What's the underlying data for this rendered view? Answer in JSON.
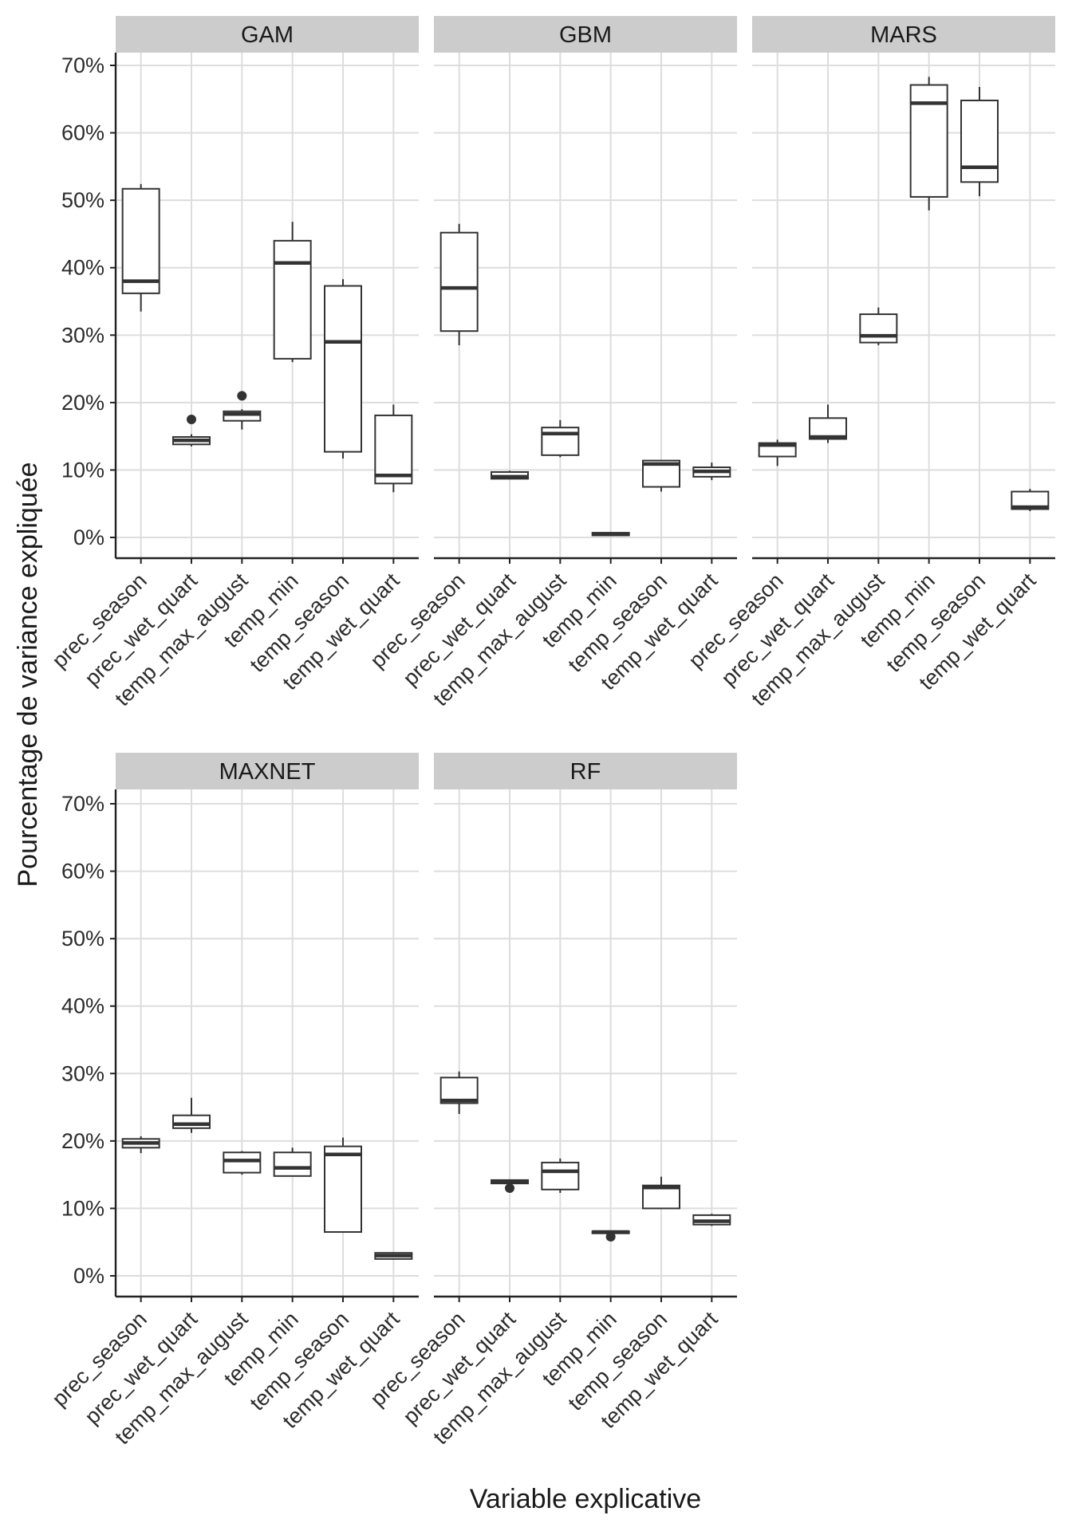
{
  "chart_data": {
    "type": "boxplot",
    "xlabel": "Variable explicative",
    "ylabel": "Pourcentage de variance expliquée",
    "ylim": [
      -0.03,
      0.72
    ],
    "yticks": [
      0,
      0.1,
      0.2,
      0.3,
      0.4,
      0.5,
      0.6,
      0.7
    ],
    "ytick_labels": [
      "0%",
      "10%",
      "20%",
      "30%",
      "40%",
      "50%",
      "60%",
      "70%"
    ],
    "categories": [
      "prec_season",
      "prec_wet_quart",
      "temp_max_august",
      "temp_min",
      "temp_season",
      "temp_wet_quart"
    ],
    "panels": [
      {
        "name": "GAM",
        "boxes": [
          {
            "whisker_low": 0.335,
            "q1": 0.362,
            "median": 0.38,
            "q3": 0.517,
            "whisker_high": 0.524,
            "outliers": []
          },
          {
            "whisker_low": 0.135,
            "q1": 0.138,
            "median": 0.144,
            "q3": 0.149,
            "whisker_high": 0.153,
            "outliers": [
              0.175
            ]
          },
          {
            "whisker_low": 0.16,
            "q1": 0.173,
            "median": 0.183,
            "q3": 0.187,
            "whisker_high": 0.19,
            "outliers": [
              0.21
            ]
          },
          {
            "whisker_low": 0.26,
            "q1": 0.265,
            "median": 0.407,
            "q3": 0.44,
            "whisker_high": 0.468,
            "outliers": []
          },
          {
            "whisker_low": 0.117,
            "q1": 0.127,
            "median": 0.29,
            "q3": 0.373,
            "whisker_high": 0.383,
            "outliers": []
          },
          {
            "whisker_low": 0.067,
            "q1": 0.08,
            "median": 0.092,
            "q3": 0.181,
            "whisker_high": 0.197,
            "outliers": []
          }
        ]
      },
      {
        "name": "GBM",
        "boxes": [
          {
            "whisker_low": 0.285,
            "q1": 0.306,
            "median": 0.37,
            "q3": 0.452,
            "whisker_high": 0.465,
            "outliers": []
          },
          {
            "whisker_low": 0.087,
            "q1": 0.087,
            "median": 0.09,
            "q3": 0.097,
            "whisker_high": 0.099,
            "outliers": []
          },
          {
            "whisker_low": 0.119,
            "q1": 0.122,
            "median": 0.154,
            "q3": 0.163,
            "whisker_high": 0.174,
            "outliers": []
          },
          {
            "whisker_low": 0.002,
            "q1": 0.003,
            "median": 0.005,
            "q3": 0.007,
            "whisker_high": 0.008,
            "outliers": []
          },
          {
            "whisker_low": 0.068,
            "q1": 0.075,
            "median": 0.109,
            "q3": 0.114,
            "whisker_high": 0.115,
            "outliers": []
          },
          {
            "whisker_low": 0.085,
            "q1": 0.09,
            "median": 0.098,
            "q3": 0.104,
            "whisker_high": 0.111,
            "outliers": []
          }
        ]
      },
      {
        "name": "MARS",
        "boxes": [
          {
            "whisker_low": 0.106,
            "q1": 0.12,
            "median": 0.137,
            "q3": 0.14,
            "whisker_high": 0.145,
            "outliers": []
          },
          {
            "whisker_low": 0.14,
            "q1": 0.146,
            "median": 0.149,
            "q3": 0.177,
            "whisker_high": 0.197,
            "outliers": []
          },
          {
            "whisker_low": 0.285,
            "q1": 0.289,
            "median": 0.299,
            "q3": 0.331,
            "whisker_high": 0.341,
            "outliers": []
          },
          {
            "whisker_low": 0.485,
            "q1": 0.505,
            "median": 0.644,
            "q3": 0.671,
            "whisker_high": 0.683,
            "outliers": []
          },
          {
            "whisker_low": 0.506,
            "q1": 0.527,
            "median": 0.549,
            "q3": 0.648,
            "whisker_high": 0.668,
            "outliers": []
          },
          {
            "whisker_low": 0.039,
            "q1": 0.042,
            "median": 0.045,
            "q3": 0.068,
            "whisker_high": 0.072,
            "outliers": []
          }
        ]
      },
      {
        "name": "MAXNET",
        "boxes": [
          {
            "whisker_low": 0.182,
            "q1": 0.19,
            "median": 0.197,
            "q3": 0.203,
            "whisker_high": 0.207,
            "outliers": []
          },
          {
            "whisker_low": 0.212,
            "q1": 0.219,
            "median": 0.225,
            "q3": 0.238,
            "whisker_high": 0.264,
            "outliers": []
          },
          {
            "whisker_low": 0.15,
            "q1": 0.153,
            "median": 0.171,
            "q3": 0.183,
            "whisker_high": 0.185,
            "outliers": []
          },
          {
            "whisker_low": 0.148,
            "q1": 0.148,
            "median": 0.16,
            "q3": 0.183,
            "whisker_high": 0.19,
            "outliers": []
          },
          {
            "whisker_low": 0.065,
            "q1": 0.065,
            "median": 0.18,
            "q3": 0.192,
            "whisker_high": 0.205,
            "outliers": []
          },
          {
            "whisker_low": 0.024,
            "q1": 0.025,
            "median": 0.03,
            "q3": 0.034,
            "whisker_high": 0.035,
            "outliers": []
          }
        ]
      },
      {
        "name": "RF",
        "boxes": [
          {
            "whisker_low": 0.24,
            "q1": 0.256,
            "median": 0.26,
            "q3": 0.294,
            "whisker_high": 0.303,
            "outliers": []
          },
          {
            "whisker_low": 0.136,
            "q1": 0.137,
            "median": 0.139,
            "q3": 0.142,
            "whisker_high": 0.143,
            "outliers": [
              0.13
            ]
          },
          {
            "whisker_low": 0.123,
            "q1": 0.128,
            "median": 0.155,
            "q3": 0.168,
            "whisker_high": 0.174,
            "outliers": []
          },
          {
            "whisker_low": 0.062,
            "q1": 0.063,
            "median": 0.065,
            "q3": 0.066,
            "whisker_high": 0.067,
            "outliers": [
              0.058
            ]
          },
          {
            "whisker_low": 0.1,
            "q1": 0.1,
            "median": 0.131,
            "q3": 0.134,
            "whisker_high": 0.147,
            "outliers": []
          },
          {
            "whisker_low": 0.074,
            "q1": 0.076,
            "median": 0.081,
            "q3": 0.09,
            "whisker_high": 0.092,
            "outliers": []
          }
        ]
      }
    ]
  }
}
